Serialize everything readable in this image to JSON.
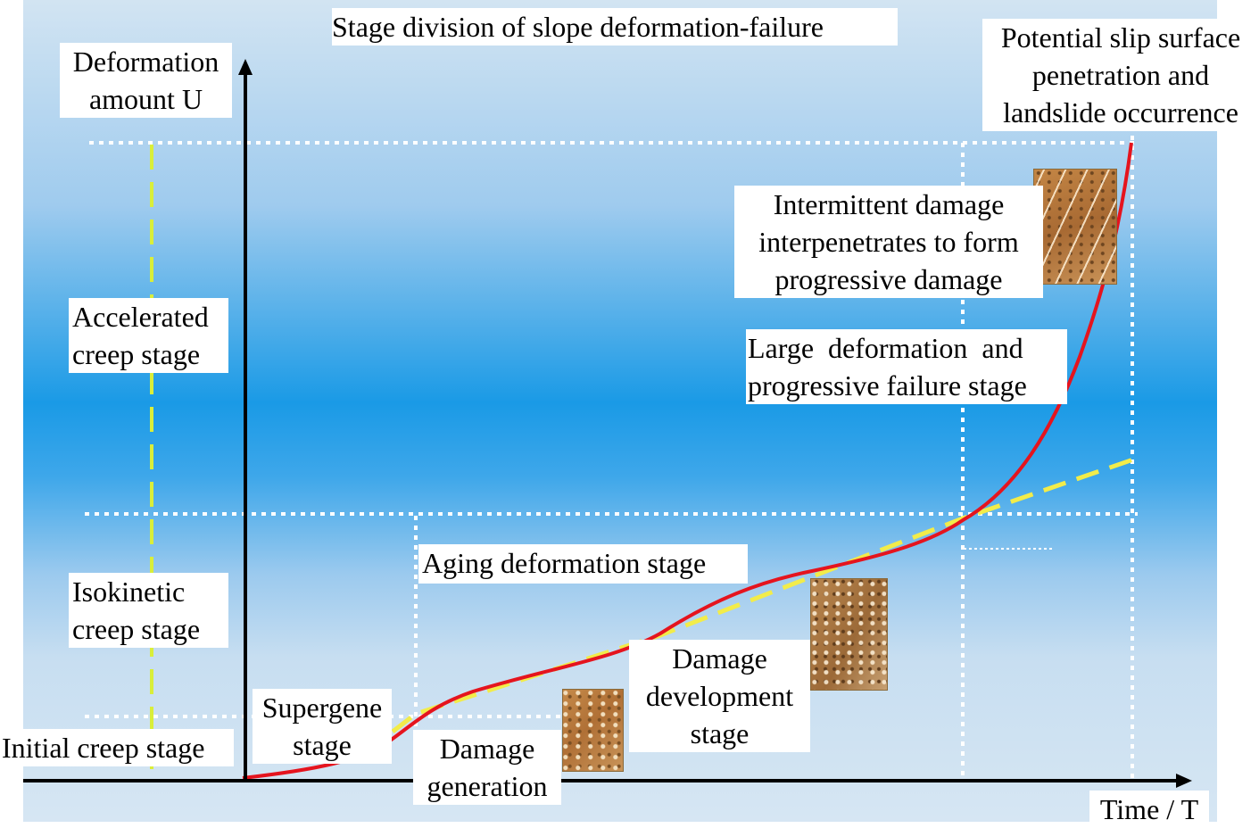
{
  "title": "Stage division of slope deformation-failure",
  "axes": {
    "y_label_line1": "Deformation",
    "y_label_line2": "amount U",
    "x_label": "Time / T"
  },
  "stages_left": {
    "accelerated_line1": "Accelerated",
    "accelerated_line2": "creep stage",
    "isokinetic_line1": "Isokinetic",
    "isokinetic_line2": "creep stage",
    "initial": "Initial creep stage"
  },
  "stages_curve": {
    "supergene_line1": "Supergene",
    "supergene_line2": "stage",
    "damage_generation_line1": "Damage",
    "damage_generation_line2": "generation",
    "aging": "Aging deformation stage",
    "damage_development_line1": "Damage",
    "damage_development_line2": "development",
    "damage_development_line3": "stage",
    "large_deformation_line1": "Large  deformation  and",
    "large_deformation_line2": "progressive failure stage",
    "intermittent_line1": "Intermittent damage",
    "intermittent_line2": "interpenetrates to form",
    "intermittent_line3": "progressive damage",
    "potential_line1": "Potential slip surface",
    "potential_line2": "penetration and",
    "potential_line3": "landslide occurrence"
  },
  "colors": {
    "curve": "#e5141e",
    "trend": "#f2ec4a",
    "guide_left": "#d9ee3a",
    "grid": "#ffffff",
    "axis": "#000000"
  },
  "icons": [
    "rock-texture-damage-generation",
    "rock-texture-damage-development",
    "rock-texture-progressive-damage"
  ]
}
